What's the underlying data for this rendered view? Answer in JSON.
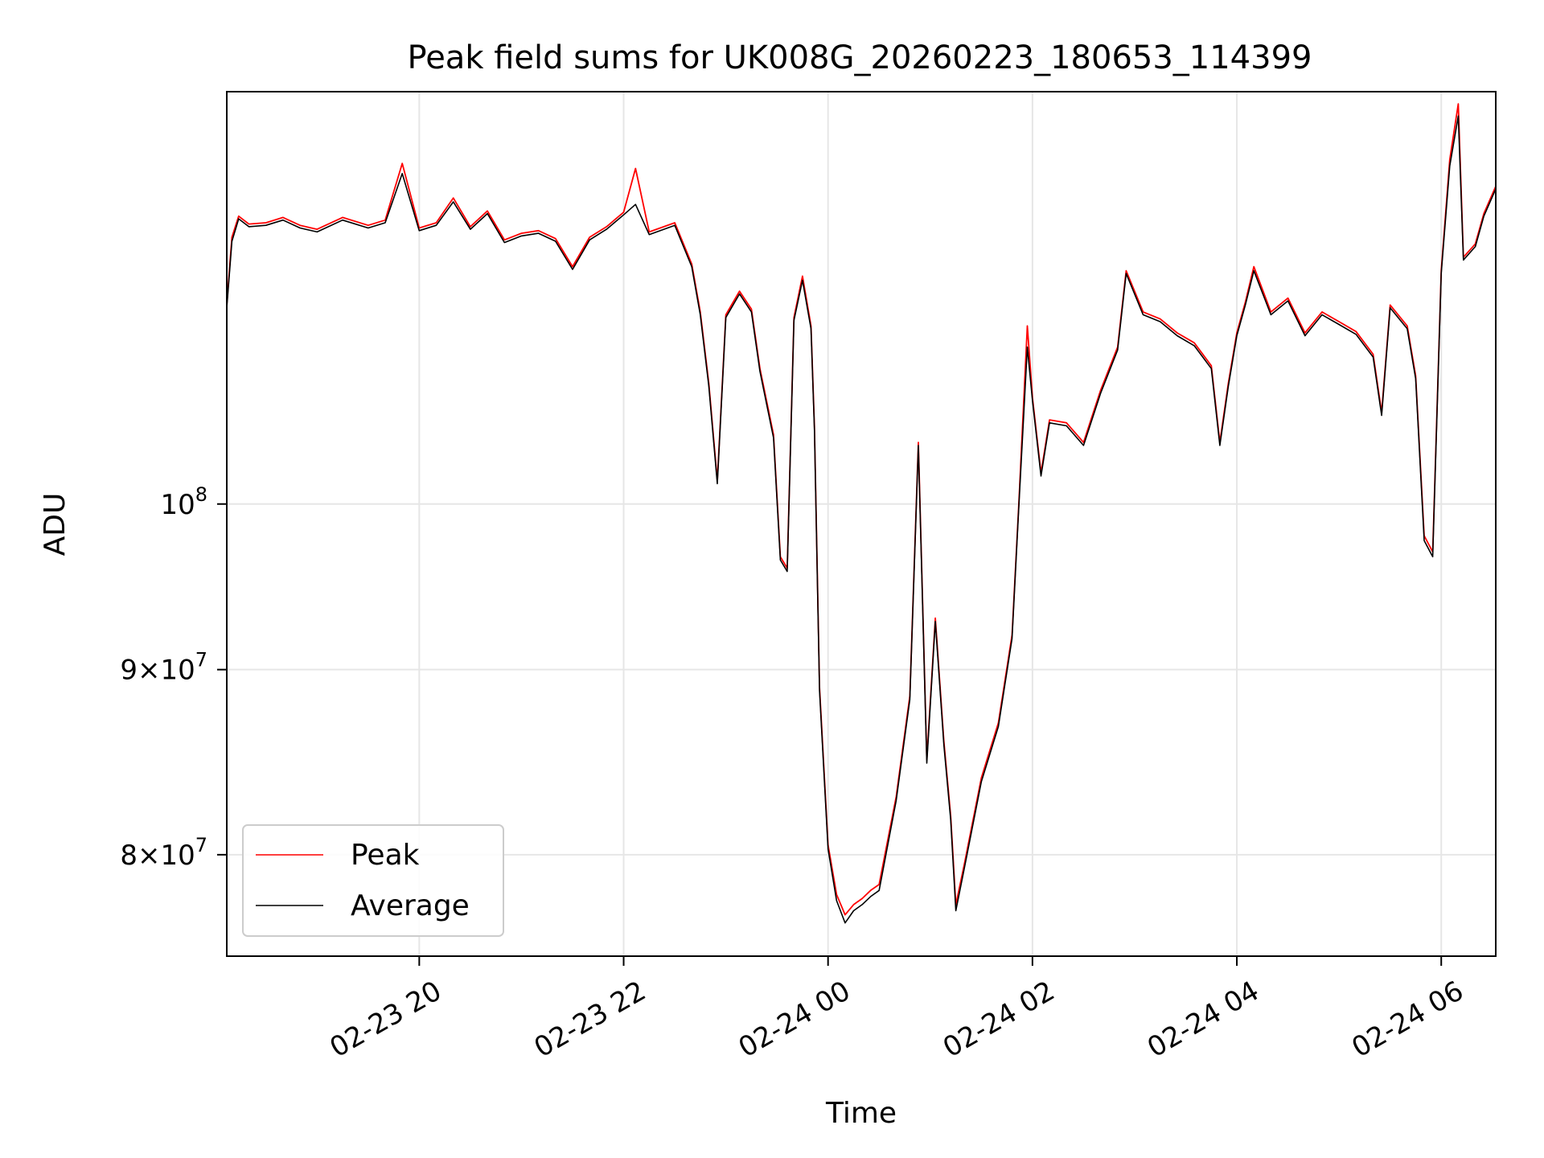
{
  "chart_data": {
    "type": "line",
    "title": "Peak field sums for UK008G_20260223_180653_114399",
    "xlabel": "Time",
    "ylabel": "ADU",
    "y_scale": "log",
    "ylim": [
      75000000,
      130000000
    ],
    "xlim": [
      "2026-02-23 18:07",
      "2026-02-24 06:32"
    ],
    "grid": true,
    "legend_position": "lower-left",
    "x_ticks": [
      {
        "t": "2026-02-23 20:00",
        "label": "02-23 20"
      },
      {
        "t": "2026-02-23 22:00",
        "label": "02-23 22"
      },
      {
        "t": "2026-02-24 00:00",
        "label": "02-24 00"
      },
      {
        "t": "2026-02-24 02:00",
        "label": "02-24 02"
      },
      {
        "t": "2026-02-24 04:00",
        "label": "02-24 04"
      },
      {
        "t": "2026-02-24 06:00",
        "label": "02-24 06"
      }
    ],
    "y_ticks": [
      {
        "value": 80000000,
        "mantissa": "8",
        "base": "10",
        "exp": "7"
      },
      {
        "value": 90000000,
        "mantissa": "9",
        "base": "10",
        "exp": "7"
      },
      {
        "value": 100000000,
        "mantissa": "",
        "base": "10",
        "exp": "8"
      }
    ],
    "series": [
      {
        "name": "Peak",
        "color": "#ff0000",
        "points": [
          [
            "2026-02-23 18:07",
            113500000
          ],
          [
            "2026-02-23 18:10",
            118500000
          ],
          [
            "2026-02-23 18:14",
            120100000
          ],
          [
            "2026-02-23 18:20",
            119500000
          ],
          [
            "2026-02-23 18:30",
            119600000
          ],
          [
            "2026-02-23 18:40",
            120000000
          ],
          [
            "2026-02-23 18:50",
            119400000
          ],
          [
            "2026-02-23 19:00",
            119100000
          ],
          [
            "2026-02-23 19:15",
            120000000
          ],
          [
            "2026-02-23 19:30",
            119400000
          ],
          [
            "2026-02-23 19:40",
            119800000
          ],
          [
            "2026-02-23 19:50",
            124200000
          ],
          [
            "2026-02-23 20:00",
            119200000
          ],
          [
            "2026-02-23 20:10",
            119600000
          ],
          [
            "2026-02-23 20:20",
            121500000
          ],
          [
            "2026-02-23 20:30",
            119300000
          ],
          [
            "2026-02-23 20:40",
            120500000
          ],
          [
            "2026-02-23 20:50",
            118300000
          ],
          [
            "2026-02-23 21:00",
            118800000
          ],
          [
            "2026-02-23 21:10",
            119000000
          ],
          [
            "2026-02-23 21:20",
            118400000
          ],
          [
            "2026-02-23 21:30",
            116300000
          ],
          [
            "2026-02-23 21:40",
            118500000
          ],
          [
            "2026-02-23 21:50",
            119300000
          ],
          [
            "2026-02-23 22:00",
            120400000
          ],
          [
            "2026-02-23 22:07",
            123800000
          ],
          [
            "2026-02-23 22:15",
            118900000
          ],
          [
            "2026-02-23 22:30",
            119600000
          ],
          [
            "2026-02-23 22:40",
            116500000
          ],
          [
            "2026-02-23 22:45",
            113000000
          ],
          [
            "2026-02-23 22:50",
            108000000
          ],
          [
            "2026-02-23 22:55",
            101500000
          ],
          [
            "2026-02-23 23:00",
            112800000
          ],
          [
            "2026-02-23 23:08",
            114500000
          ],
          [
            "2026-02-23 23:15",
            113200000
          ],
          [
            "2026-02-23 23:20",
            109000000
          ],
          [
            "2026-02-23 23:28",
            104500000
          ],
          [
            "2026-02-23 23:32",
            96700000
          ],
          [
            "2026-02-23 23:36",
            96000000
          ],
          [
            "2026-02-23 23:40",
            112600000
          ],
          [
            "2026-02-23 23:45",
            115600000
          ],
          [
            "2026-02-23 23:50",
            112000000
          ],
          [
            "2026-02-23 23:52",
            105000000
          ],
          [
            "2026-02-23 23:55",
            89000000
          ],
          [
            "2026-02-24 00:00",
            80500000
          ],
          [
            "2026-02-24 00:05",
            78000000
          ],
          [
            "2026-02-24 00:10",
            77000000
          ],
          [
            "2026-02-24 00:15",
            77500000
          ],
          [
            "2026-02-24 00:20",
            77800000
          ],
          [
            "2026-02-24 00:25",
            78200000
          ],
          [
            "2026-02-24 00:30",
            78500000
          ],
          [
            "2026-02-24 00:40",
            83000000
          ],
          [
            "2026-02-24 00:48",
            88500000
          ],
          [
            "2026-02-24 00:53",
            104000000
          ],
          [
            "2026-02-24 00:58",
            85000000
          ],
          [
            "2026-02-24 01:03",
            93000000
          ],
          [
            "2026-02-24 01:08",
            86000000
          ],
          [
            "2026-02-24 01:12",
            82000000
          ],
          [
            "2026-02-24 01:15",
            77500000
          ],
          [
            "2026-02-24 01:20",
            79500000
          ],
          [
            "2026-02-24 01:30",
            84000000
          ],
          [
            "2026-02-24 01:40",
            87000000
          ],
          [
            "2026-02-24 01:48",
            92000000
          ],
          [
            "2026-02-24 01:52",
            100000000
          ],
          [
            "2026-02-24 01:57",
            112000000
          ],
          [
            "2026-02-24 02:00",
            107000000
          ],
          [
            "2026-02-24 02:05",
            102000000
          ],
          [
            "2026-02-24 02:10",
            105500000
          ],
          [
            "2026-02-24 02:20",
            105300000
          ],
          [
            "2026-02-24 02:30",
            104000000
          ],
          [
            "2026-02-24 02:40",
            107500000
          ],
          [
            "2026-02-24 02:50",
            110500000
          ],
          [
            "2026-02-24 02:55",
            116000000
          ],
          [
            "2026-02-24 03:05",
            113000000
          ],
          [
            "2026-02-24 03:15",
            112500000
          ],
          [
            "2026-02-24 03:25",
            111500000
          ],
          [
            "2026-02-24 03:35",
            110800000
          ],
          [
            "2026-02-24 03:45",
            109200000
          ],
          [
            "2026-02-24 03:50",
            104000000
          ],
          [
            "2026-02-24 03:55",
            108000000
          ],
          [
            "2026-02-24 04:00",
            111500000
          ],
          [
            "2026-02-24 04:05",
            113700000
          ],
          [
            "2026-02-24 04:10",
            116300000
          ],
          [
            "2026-02-24 04:20",
            113000000
          ],
          [
            "2026-02-24 04:30",
            114000000
          ],
          [
            "2026-02-24 04:40",
            111500000
          ],
          [
            "2026-02-24 04:50",
            113000000
          ],
          [
            "2026-02-24 05:00",
            112300000
          ],
          [
            "2026-02-24 05:10",
            111600000
          ],
          [
            "2026-02-24 05:20",
            110000000
          ],
          [
            "2026-02-24 05:25",
            106000000
          ],
          [
            "2026-02-24 05:30",
            113500000
          ],
          [
            "2026-02-24 05:40",
            112000000
          ],
          [
            "2026-02-24 05:45",
            108500000
          ],
          [
            "2026-02-24 05:50",
            98000000
          ],
          [
            "2026-02-24 05:55",
            97000000
          ],
          [
            "2026-02-24 06:00",
            116000000
          ],
          [
            "2026-02-24 06:05",
            124500000
          ],
          [
            "2026-02-24 06:10",
            129000000
          ],
          [
            "2026-02-24 06:13",
            117000000
          ],
          [
            "2026-02-24 06:20",
            118000000
          ],
          [
            "2026-02-24 06:25",
            120300000
          ],
          [
            "2026-02-24 06:32",
            122400000
          ]
        ]
      },
      {
        "name": "Average",
        "color": "#000000",
        "points": [
          [
            "2026-02-23 18:07",
            113300000
          ],
          [
            "2026-02-23 18:10",
            118200000
          ],
          [
            "2026-02-23 18:14",
            119900000
          ],
          [
            "2026-02-23 18:20",
            119300000
          ],
          [
            "2026-02-23 18:30",
            119400000
          ],
          [
            "2026-02-23 18:40",
            119800000
          ],
          [
            "2026-02-23 18:50",
            119200000
          ],
          [
            "2026-02-23 19:00",
            118900000
          ],
          [
            "2026-02-23 19:15",
            119800000
          ],
          [
            "2026-02-23 19:30",
            119200000
          ],
          [
            "2026-02-23 19:40",
            119600000
          ],
          [
            "2026-02-23 19:50",
            123400000
          ],
          [
            "2026-02-23 20:00",
            119000000
          ],
          [
            "2026-02-23 20:10",
            119400000
          ],
          [
            "2026-02-23 20:20",
            121200000
          ],
          [
            "2026-02-23 20:30",
            119100000
          ],
          [
            "2026-02-23 20:40",
            120300000
          ],
          [
            "2026-02-23 20:50",
            118100000
          ],
          [
            "2026-02-23 21:00",
            118600000
          ],
          [
            "2026-02-23 21:10",
            118800000
          ],
          [
            "2026-02-23 21:20",
            118200000
          ],
          [
            "2026-02-23 21:30",
            116100000
          ],
          [
            "2026-02-23 21:40",
            118300000
          ],
          [
            "2026-02-23 21:50",
            119100000
          ],
          [
            "2026-02-23 22:00",
            120200000
          ],
          [
            "2026-02-23 22:07",
            121000000
          ],
          [
            "2026-02-23 22:15",
            118700000
          ],
          [
            "2026-02-23 22:30",
            119400000
          ],
          [
            "2026-02-23 22:40",
            116300000
          ],
          [
            "2026-02-23 22:45",
            112800000
          ],
          [
            "2026-02-23 22:50",
            107800000
          ],
          [
            "2026-02-23 22:55",
            101300000
          ],
          [
            "2026-02-23 23:00",
            112600000
          ],
          [
            "2026-02-23 23:08",
            114300000
          ],
          [
            "2026-02-23 23:15",
            113000000
          ],
          [
            "2026-02-23 23:20",
            108800000
          ],
          [
            "2026-02-23 23:28",
            104300000
          ],
          [
            "2026-02-23 23:32",
            96500000
          ],
          [
            "2026-02-23 23:36",
            95800000
          ],
          [
            "2026-02-23 23:40",
            112400000
          ],
          [
            "2026-02-23 23:45",
            115300000
          ],
          [
            "2026-02-23 23:50",
            111800000
          ],
          [
            "2026-02-23 23:52",
            104800000
          ],
          [
            "2026-02-23 23:55",
            88800000
          ],
          [
            "2026-02-24 00:00",
            80300000
          ],
          [
            "2026-02-24 00:05",
            77700000
          ],
          [
            "2026-02-24 00:10",
            76600000
          ],
          [
            "2026-02-24 00:15",
            77200000
          ],
          [
            "2026-02-24 00:20",
            77500000
          ],
          [
            "2026-02-24 00:25",
            77900000
          ],
          [
            "2026-02-24 00:30",
            78200000
          ],
          [
            "2026-02-24 00:40",
            82800000
          ],
          [
            "2026-02-24 00:48",
            88300000
          ],
          [
            "2026-02-24 00:53",
            103800000
          ],
          [
            "2026-02-24 00:58",
            84800000
          ],
          [
            "2026-02-24 01:03",
            92800000
          ],
          [
            "2026-02-24 01:08",
            85800000
          ],
          [
            "2026-02-24 01:12",
            81800000
          ],
          [
            "2026-02-24 01:15",
            77200000
          ],
          [
            "2026-02-24 01:20",
            79300000
          ],
          [
            "2026-02-24 01:30",
            83800000
          ],
          [
            "2026-02-24 01:40",
            86800000
          ],
          [
            "2026-02-24 01:48",
            91800000
          ],
          [
            "2026-02-24 01:52",
            99800000
          ],
          [
            "2026-02-24 01:57",
            110500000
          ],
          [
            "2026-02-24 02:00",
            106800000
          ],
          [
            "2026-02-24 02:05",
            101800000
          ],
          [
            "2026-02-24 02:10",
            105300000
          ],
          [
            "2026-02-24 02:20",
            105100000
          ],
          [
            "2026-02-24 02:30",
            103800000
          ],
          [
            "2026-02-24 02:40",
            107300000
          ],
          [
            "2026-02-24 02:50",
            110300000
          ],
          [
            "2026-02-24 02:55",
            115800000
          ],
          [
            "2026-02-24 03:05",
            112800000
          ],
          [
            "2026-02-24 03:15",
            112300000
          ],
          [
            "2026-02-24 03:25",
            111300000
          ],
          [
            "2026-02-24 03:35",
            110600000
          ],
          [
            "2026-02-24 03:45",
            109000000
          ],
          [
            "2026-02-24 03:50",
            103800000
          ],
          [
            "2026-02-24 03:55",
            107800000
          ],
          [
            "2026-02-24 04:00",
            111300000
          ],
          [
            "2026-02-24 04:05",
            113500000
          ],
          [
            "2026-02-24 04:10",
            116000000
          ],
          [
            "2026-02-24 04:20",
            112800000
          ],
          [
            "2026-02-24 04:30",
            113800000
          ],
          [
            "2026-02-24 04:40",
            111300000
          ],
          [
            "2026-02-24 04:50",
            112800000
          ],
          [
            "2026-02-24 05:00",
            112100000
          ],
          [
            "2026-02-24 05:10",
            111400000
          ],
          [
            "2026-02-24 05:20",
            109800000
          ],
          [
            "2026-02-24 05:25",
            105800000
          ],
          [
            "2026-02-24 05:30",
            113300000
          ],
          [
            "2026-02-24 05:40",
            111800000
          ],
          [
            "2026-02-24 05:45",
            108300000
          ],
          [
            "2026-02-24 05:50",
            97700000
          ],
          [
            "2026-02-24 05:55",
            96700000
          ],
          [
            "2026-02-24 06:00",
            115800000
          ],
          [
            "2026-02-24 06:05",
            124000000
          ],
          [
            "2026-02-24 06:10",
            128000000
          ],
          [
            "2026-02-24 06:13",
            116800000
          ],
          [
            "2026-02-24 06:20",
            117800000
          ],
          [
            "2026-02-24 06:25",
            120100000
          ],
          [
            "2026-02-24 06:32",
            122200000
          ]
        ]
      }
    ]
  }
}
